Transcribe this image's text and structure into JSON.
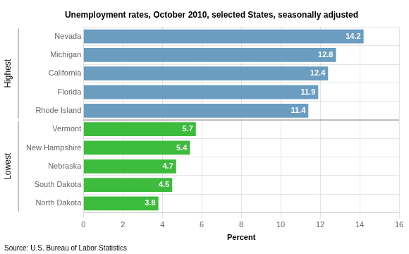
{
  "chart_data": {
    "type": "bar",
    "orientation": "horizontal",
    "title": "Unemployment rates, October 2010, selected States, seasonally adjusted",
    "categories": [
      "Nevada",
      "Michigan",
      "California",
      "Florida",
      "Rhode Island",
      "Vermont",
      "New Hampshire",
      "Nebraska",
      "South Dakota",
      "North Dakota"
    ],
    "values": [
      14.2,
      12.8,
      12.4,
      11.9,
      11.4,
      5.7,
      5.4,
      4.7,
      4.5,
      3.8
    ],
    "colors": [
      "#6a9dbf",
      "#6a9dbf",
      "#6a9dbf",
      "#6a9dbf",
      "#6a9dbf",
      "#3dbb3d",
      "#3dbb3d",
      "#3dbb3d",
      "#3dbb3d",
      "#3dbb3d"
    ],
    "data_labels": true,
    "xlim": [
      0,
      16
    ],
    "xticks": [
      0,
      2,
      4,
      6,
      8,
      10,
      12,
      14,
      16
    ],
    "xlabel": "Percent",
    "annotations": [
      "Highest",
      "Lowest"
    ],
    "source": "Source: U.S. Bureau of Labor Statistics",
    "grid": true
  }
}
